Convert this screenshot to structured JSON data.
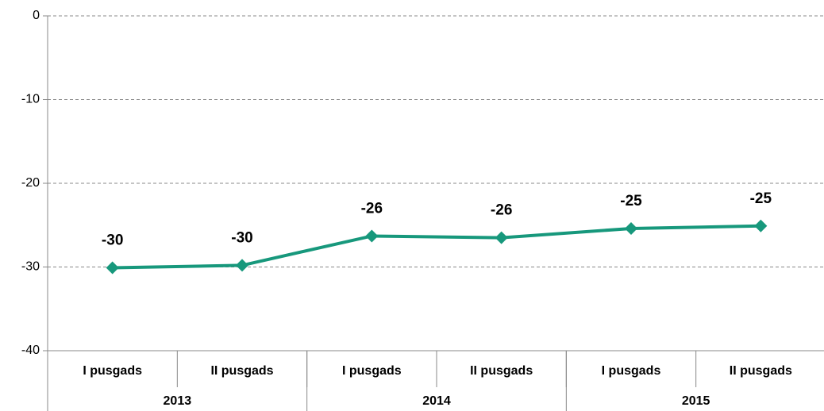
{
  "chart_data": {
    "type": "line",
    "categories": [
      "I pusgads",
      "II pusgads",
      "I pusgads",
      "II pusgads",
      "I pusgads",
      "II pusgads"
    ],
    "groups": [
      "2013",
      "2014",
      "2015"
    ],
    "series": [
      {
        "color": "#17987c",
        "values": [
          -30.1,
          -29.8,
          -26.3,
          -26.5,
          -25.4,
          -25.1
        ],
        "value_labels": [
          "-30",
          "-30",
          "-26",
          "-26",
          "-25",
          "-25"
        ]
      }
    ],
    "ylim": [
      -40,
      0
    ],
    "yticks": [
      0,
      -10,
      -20,
      -30,
      -40
    ],
    "grid": true
  }
}
